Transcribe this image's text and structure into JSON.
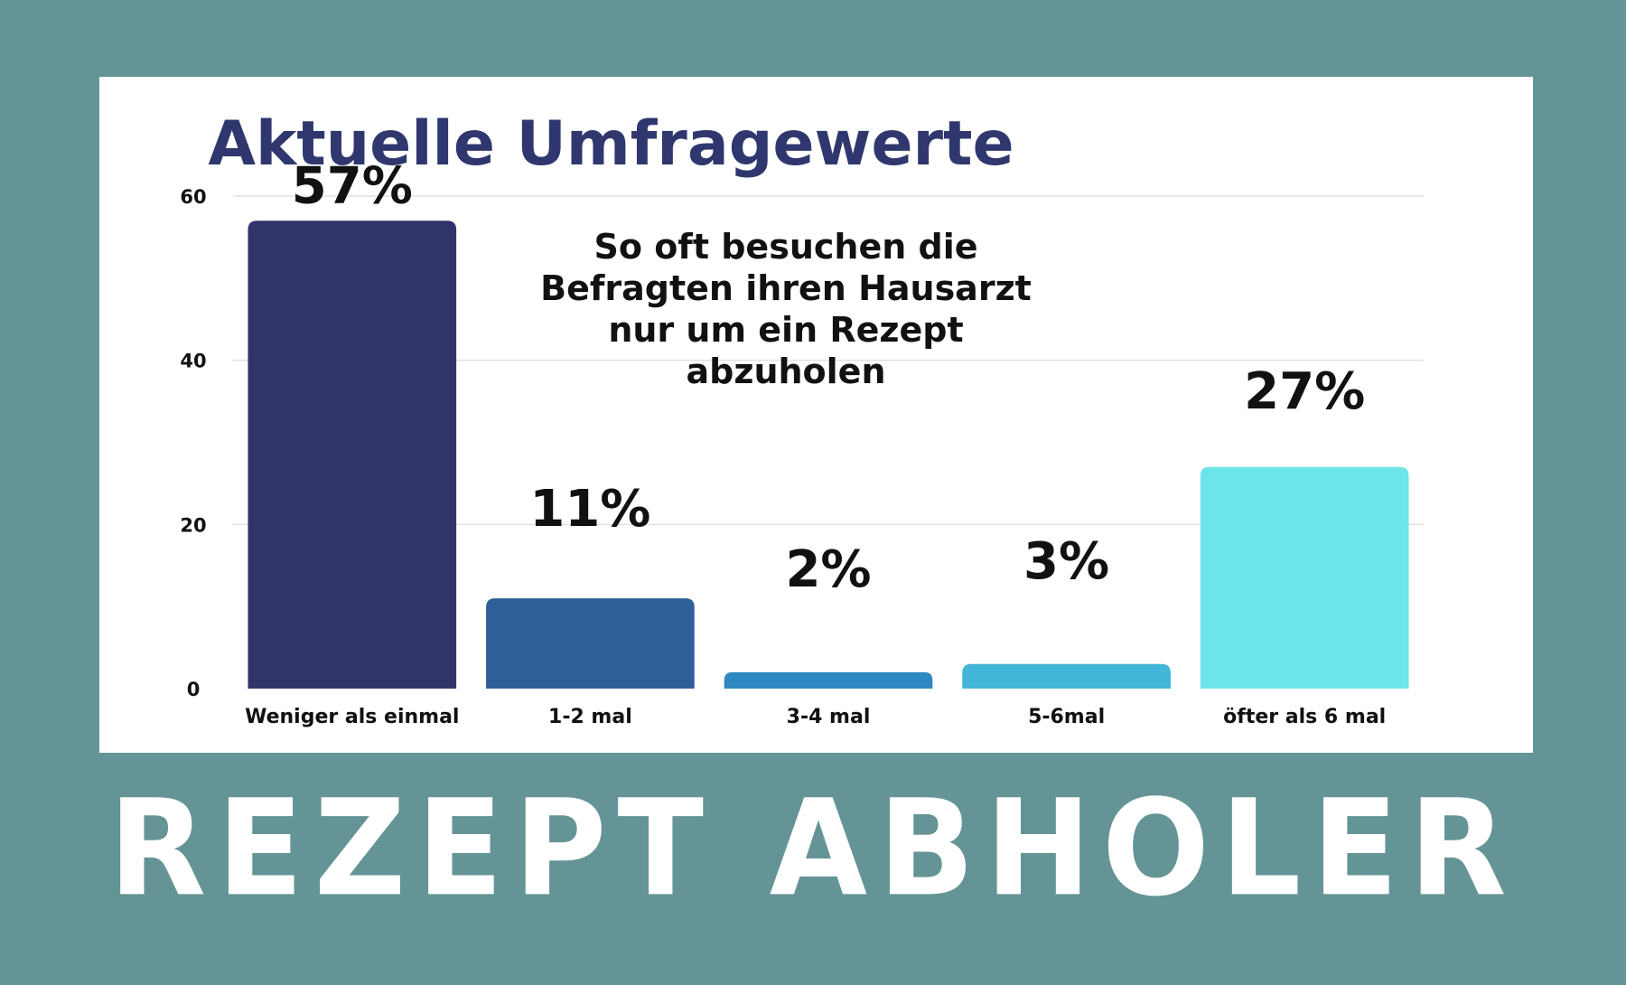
{
  "chart_data": {
    "type": "bar",
    "title": "Aktuelle Umfragewerte",
    "subtitle": "So oft besuchen die Befragten ihren Hausarzt nur um ein Rezept abzuholen",
    "xlabel": "",
    "ylabel": "",
    "ylim": [
      0,
      60
    ],
    "yticks": [
      0,
      20,
      40,
      60
    ],
    "grid": true,
    "categories": [
      "Weniger als einmal",
      "1-2 mal",
      "3-4 mal",
      "5-6mal",
      "öfter als 6 mal"
    ],
    "values": [
      57,
      11,
      2,
      3,
      27
    ],
    "data_labels": [
      "57%",
      "11%",
      "2%",
      "3%",
      "27%"
    ],
    "colors": [
      "#30346b",
      "#2d5f98",
      "#2e88c1",
      "#42b6d8",
      "#6de5e8"
    ]
  },
  "footer": {
    "title": "REZEPT ABHOLER"
  },
  "colors": {
    "background": "#659496",
    "panel": "#ffffff",
    "title": "#2f376e",
    "footer_text": "#ffffff"
  }
}
